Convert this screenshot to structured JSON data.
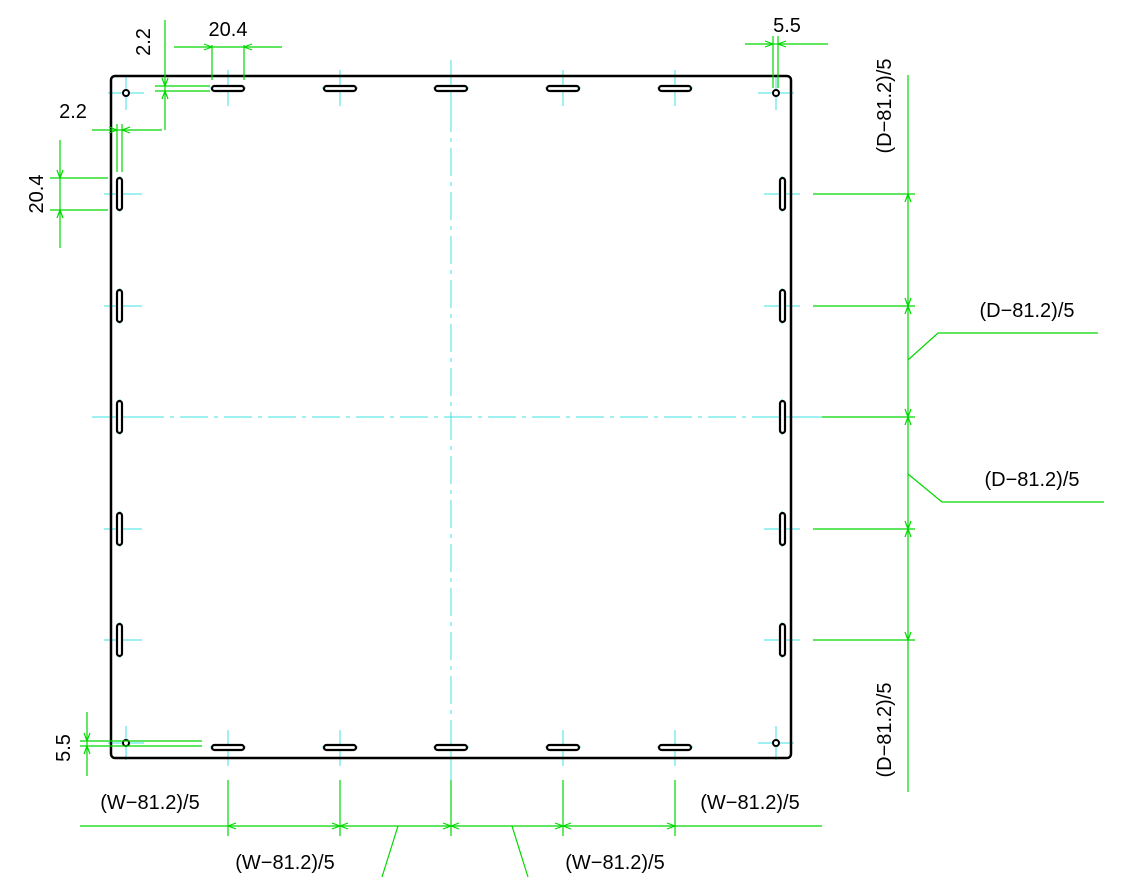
{
  "colors": {
    "outline": "#000000",
    "dimension": "#00d800",
    "centerline": "#3fe0e0"
  },
  "dimensions": {
    "slot_length_top": "20.4",
    "slot_length_left": "20.4",
    "corner_offset_top": "2.2",
    "corner_offset_left": "2.2",
    "hole_offset_top_right": "5.5",
    "hole_offset_bottom_left": "5.5",
    "depth_pitch_right_top": "(D−81.2)/5",
    "depth_pitch_leader_1": "(D−81.2)/5",
    "depth_pitch_leader_2": "(D−81.2)/5",
    "depth_pitch_right_bottom": "(D−81.2)/5",
    "width_pitch_bottom_left": "(W−81.2)/5",
    "width_pitch_leader_1": "(W−81.2)/5",
    "width_pitch_leader_2": "(W−81.2)/5",
    "width_pitch_bottom_right": "(W−81.2)/5"
  }
}
